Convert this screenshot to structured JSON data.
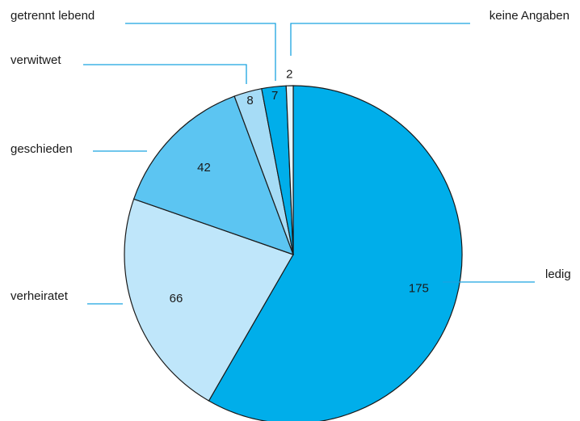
{
  "chart_data": {
    "type": "pie",
    "title": "",
    "categories": [
      "ledig",
      "verheiratet",
      "geschieden",
      "verwitwet",
      "getrennt lebend",
      "keine Angaben"
    ],
    "values": [
      175,
      66,
      42,
      8,
      7,
      2
    ],
    "colors": [
      "#00aeea",
      "#bfe6fa",
      "#5cc5f2",
      "#a6dcf6",
      "#00aeea",
      "#e6f5fd"
    ],
    "legend": "leader-lines"
  }
}
